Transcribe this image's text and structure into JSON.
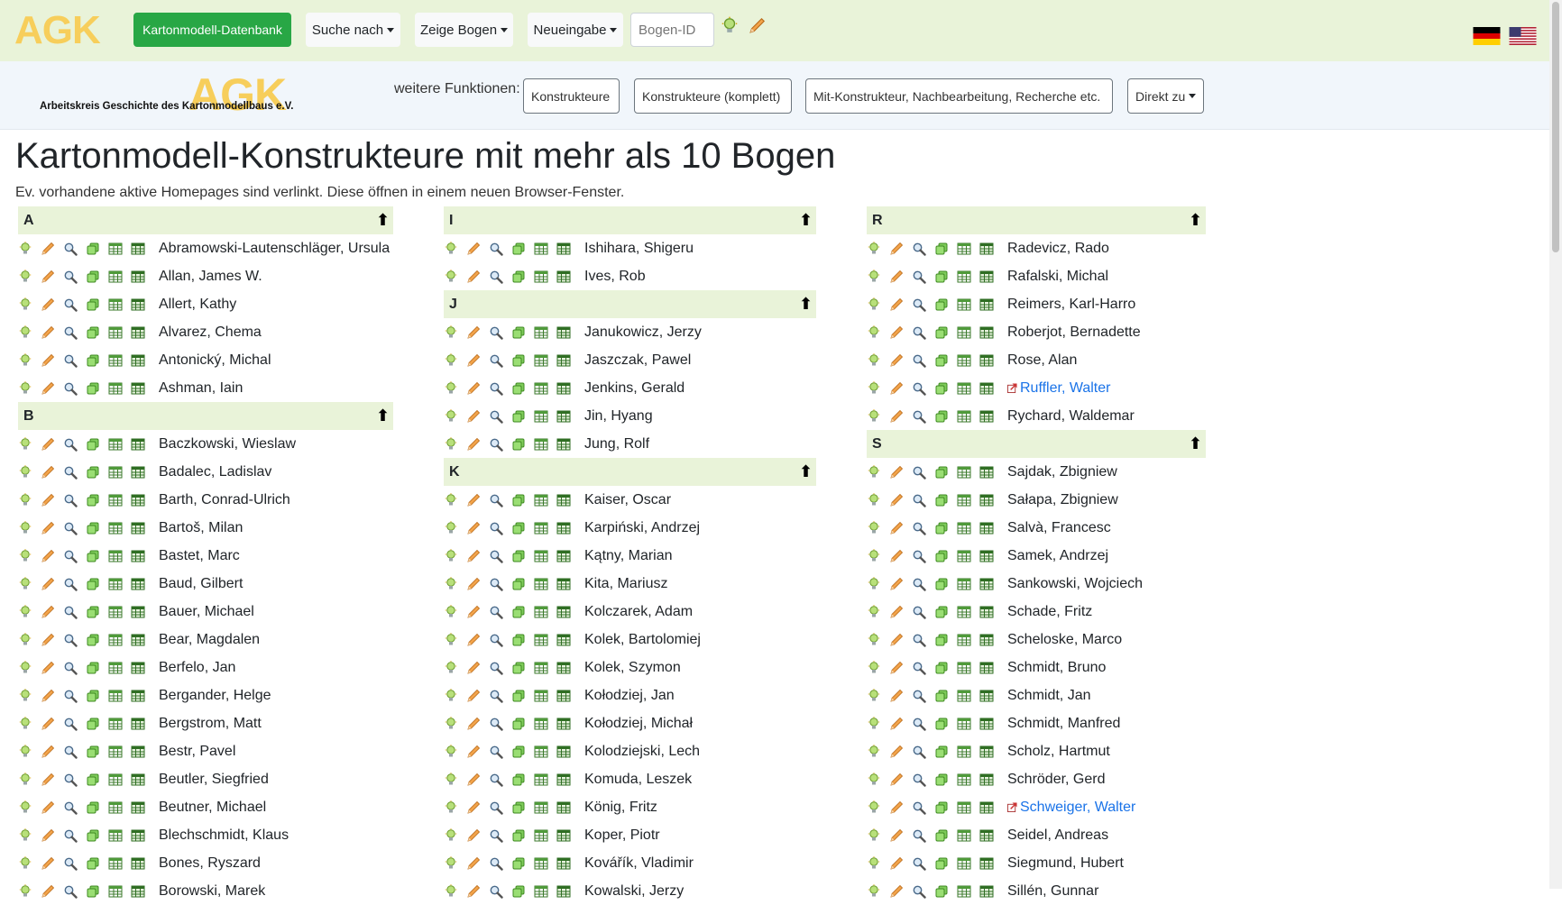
{
  "nav": {
    "logo": "AGK",
    "db_button": "Kartonmodell-Datenbank",
    "search_menu": "Suche nach",
    "show_menu": "Zeige Bogen",
    "new_menu": "Neueingabe",
    "sheet_id_placeholder": "Bogen-ID"
  },
  "subbar": {
    "logo_big": "AGK",
    "logo_small": "Arbeitskreis Geschichte des Kartonmodellbaus e.V.",
    "label": "weitere Funktionen:",
    "btn_designers": "Konstrukteure",
    "btn_designers_full": "Konstrukteure (komplett)",
    "btn_misc": "Mit-Konstrukteur, Nachbearbeitung, Recherche etc.",
    "btn_direct": "Direkt zu"
  },
  "page": {
    "title": "Kartonmodell-Konstrukteure mit mehr als 10 Bogen",
    "intro": "Ev. vorhandene aktive Homepages sind verlinkt. Diese öffnen in einem neuen Browser-Fenster."
  },
  "columns": [
    {
      "sections": [
        {
          "letter": "A",
          "names": [
            {
              "name": "Abramowski-Lautenschläger, Ursula"
            },
            {
              "name": "Allan, James W."
            },
            {
              "name": "Allert, Kathy"
            },
            {
              "name": "Alvarez, Chema"
            },
            {
              "name": "Antonický, Michal"
            },
            {
              "name": "Ashman, Iain"
            }
          ]
        },
        {
          "letter": "B",
          "names": [
            {
              "name": "Baczkowski, Wieslaw"
            },
            {
              "name": "Badalec, Ladislav"
            },
            {
              "name": "Barth, Conrad-Ulrich"
            },
            {
              "name": "Bartoš, Milan"
            },
            {
              "name": "Bastet, Marc"
            },
            {
              "name": "Baud, Gilbert"
            },
            {
              "name": "Bauer, Michael"
            },
            {
              "name": "Bear, Magdalen"
            },
            {
              "name": "Berfelo, Jan"
            },
            {
              "name": "Bergander, Helge"
            },
            {
              "name": "Bergstrom, Matt"
            },
            {
              "name": "Bestr, Pavel"
            },
            {
              "name": "Beutler, Siegfried"
            },
            {
              "name": "Beutner, Michael"
            },
            {
              "name": "Blechschmidt, Klaus"
            },
            {
              "name": "Bones, Ryszard"
            },
            {
              "name": "Borowski, Marek"
            }
          ]
        }
      ]
    },
    {
      "sections": [
        {
          "letter": "I",
          "names": [
            {
              "name": "Ishihara, Shigeru"
            },
            {
              "name": "Ives, Rob"
            }
          ]
        },
        {
          "letter": "J",
          "names": [
            {
              "name": "Janukowicz, Jerzy"
            },
            {
              "name": "Jaszczak, Pawel"
            },
            {
              "name": "Jenkins, Gerald"
            },
            {
              "name": "Jin, Hyang"
            },
            {
              "name": "Jung, Rolf"
            }
          ]
        },
        {
          "letter": "K",
          "names": [
            {
              "name": "Kaiser, Oscar"
            },
            {
              "name": "Karpiński, Andrzej"
            },
            {
              "name": "Kątny, Marian"
            },
            {
              "name": "Kita, Mariusz"
            },
            {
              "name": "Kolczarek, Adam"
            },
            {
              "name": "Kolek, Bartolomiej"
            },
            {
              "name": "Kolek, Szymon"
            },
            {
              "name": "Kołodziej, Jan"
            },
            {
              "name": "Kołodziej, Michał"
            },
            {
              "name": "Kolodziejski, Lech"
            },
            {
              "name": "Komuda, Leszek"
            },
            {
              "name": "König, Fritz"
            },
            {
              "name": "Koper, Piotr"
            },
            {
              "name": "Kovářík, Vladimir"
            },
            {
              "name": "Kowalski, Jerzy"
            }
          ]
        }
      ]
    },
    {
      "sections": [
        {
          "letter": "R",
          "names": [
            {
              "name": "Radevicz, Rado"
            },
            {
              "name": "Rafalski, Michal"
            },
            {
              "name": "Reimers, Karl-Harro"
            },
            {
              "name": "Roberjot, Bernadette"
            },
            {
              "name": "Rose, Alan"
            },
            {
              "name": "Ruffler, Walter",
              "link": true
            },
            {
              "name": "Rychard, Waldemar"
            }
          ]
        },
        {
          "letter": "S",
          "names": [
            {
              "name": "Sajdak, Zbigniew"
            },
            {
              "name": "Sałapa, Zbigniew"
            },
            {
              "name": "Salvà, Francesc"
            },
            {
              "name": "Samek, Andrzej"
            },
            {
              "name": "Sankowski, Wojciech"
            },
            {
              "name": "Schade, Fritz"
            },
            {
              "name": "Scheloske, Marco"
            },
            {
              "name": "Schmidt, Bruno"
            },
            {
              "name": "Schmidt, Jan"
            },
            {
              "name": "Schmidt, Manfred"
            },
            {
              "name": "Scholz, Hartmut"
            },
            {
              "name": "Schröder, Gerd"
            },
            {
              "name": "Schweiger, Walter",
              "link": true
            },
            {
              "name": "Seidel, Andreas"
            },
            {
              "name": "Siegmund, Hubert"
            },
            {
              "name": "Sillén, Gunnar"
            }
          ]
        }
      ]
    }
  ],
  "colors": {
    "header_bg": "#e9f3d9",
    "primary_button": "#28a745",
    "link": "#1a73e8",
    "logo": "#f7ce5b"
  },
  "row_icons": [
    "bulb-icon",
    "pencil-icon",
    "magnifier-icon",
    "copy-icon",
    "table-icon",
    "grid-icon"
  ]
}
